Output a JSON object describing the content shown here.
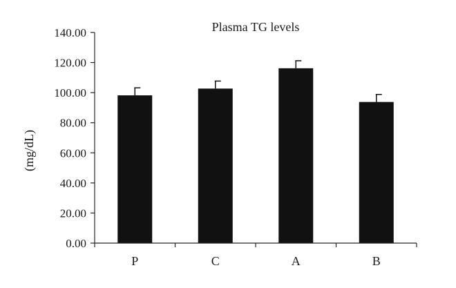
{
  "chart_data": {
    "type": "bar",
    "title": "Plasma TG levels",
    "xlabel": "",
    "ylabel": "(mg/dL)",
    "categories": [
      "P",
      "C",
      "A",
      "B"
    ],
    "values": [
      98.2,
      102.7,
      116.2,
      93.8
    ],
    "errors": [
      5.0,
      5.0,
      5.0,
      5.0
    ],
    "ylim": [
      0,
      140
    ],
    "yticks": [
      0,
      20,
      40,
      60,
      80,
      100,
      120,
      140
    ],
    "ytick_labels": [
      "0.00",
      "20.00",
      "40.00",
      "60.00",
      "80.00",
      "100.00",
      "120.00",
      "140.00"
    ],
    "grid": false,
    "legend": "none",
    "colors": {
      "bar": "#111111",
      "axis": "#222222"
    }
  }
}
